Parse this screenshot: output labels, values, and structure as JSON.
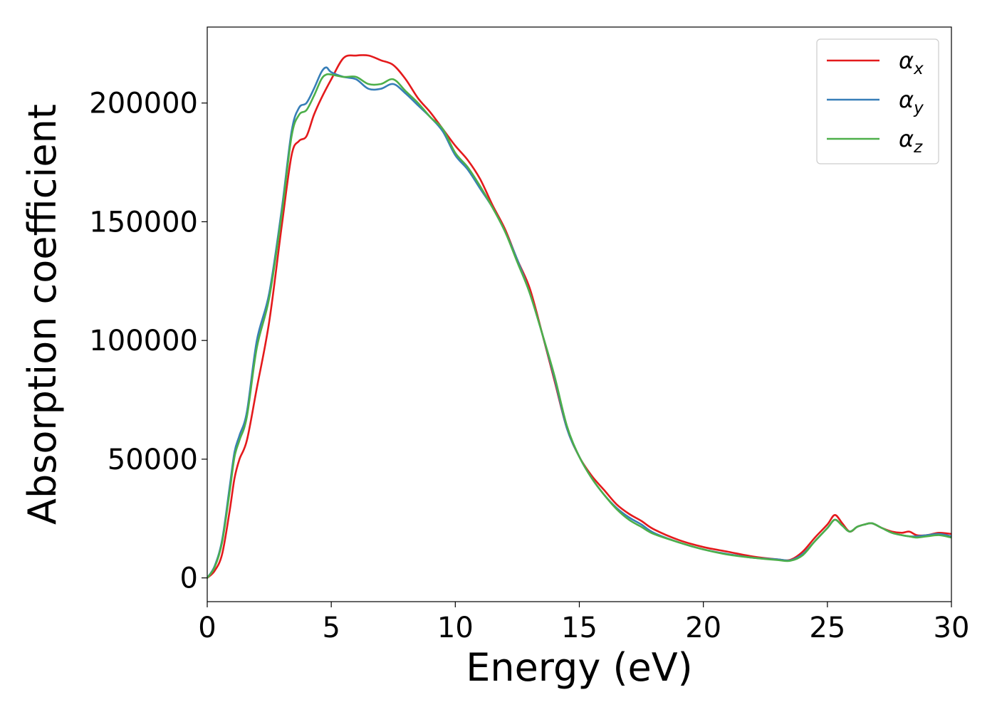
{
  "chart_data": {
    "type": "line",
    "xlabel": "Energy (eV)",
    "ylabel": "Absorption coefficient",
    "xlim": [
      0,
      30
    ],
    "ylim": [
      -10000,
      232000
    ],
    "xticks": [
      0,
      5,
      10,
      15,
      20,
      25,
      30
    ],
    "xtick_labels": [
      "0",
      "5",
      "10",
      "15",
      "20",
      "25",
      "30"
    ],
    "yticks": [
      0,
      50000,
      100000,
      150000,
      200000
    ],
    "ytick_labels": [
      "0",
      "50000",
      "100000",
      "150000",
      "200000"
    ],
    "grid": false,
    "legend_position": "top-right",
    "series": [
      {
        "name": "α",
        "subscript": "x",
        "color": "#e41a1c",
        "x": [
          0,
          0.3,
          0.6,
          0.9,
          1.1,
          1.3,
          1.6,
          2.0,
          2.5,
          3.0,
          3.4,
          3.7,
          4.0,
          4.3,
          4.6,
          5.0,
          5.5,
          6.0,
          6.5,
          7.0,
          7.5,
          8.0,
          8.5,
          9.0,
          9.5,
          10.0,
          10.5,
          11.0,
          11.5,
          12.0,
          12.5,
          13.0,
          13.5,
          14.0,
          14.5,
          15.0,
          15.5,
          16.0,
          16.5,
          17.0,
          17.5,
          18.0,
          19.0,
          20.0,
          21.0,
          22.0,
          23.0,
          23.5,
          24.0,
          24.5,
          25.0,
          25.3,
          25.6,
          25.9,
          26.2,
          26.5,
          26.8,
          27.2,
          27.6,
          28.0,
          28.3,
          28.6,
          29.0,
          29.5,
          30.0
        ],
        "y": [
          0,
          3000,
          10000,
          28000,
          42000,
          50000,
          58000,
          80000,
          108000,
          148000,
          178000,
          184000,
          186000,
          195000,
          202000,
          210000,
          219000,
          220000,
          220000,
          218000,
          216000,
          210000,
          202000,
          196000,
          189000,
          182000,
          176000,
          168000,
          157000,
          147000,
          134000,
          122000,
          103000,
          83000,
          63000,
          51000,
          43000,
          37000,
          31000,
          27000,
          24000,
          20500,
          16000,
          13000,
          11000,
          9000,
          7800,
          7600,
          11000,
          17000,
          22500,
          26500,
          23000,
          19500,
          21500,
          22500,
          23000,
          21000,
          19500,
          19000,
          19500,
          18000,
          18000,
          19000,
          18500
        ]
      },
      {
        "name": "α",
        "subscript": "y",
        "color": "#377eb8",
        "x": [
          0,
          0.3,
          0.6,
          0.9,
          1.1,
          1.3,
          1.6,
          2.0,
          2.5,
          3.0,
          3.4,
          3.7,
          4.0,
          4.3,
          4.6,
          4.8,
          5.0,
          5.5,
          6.0,
          6.5,
          7.0,
          7.5,
          8.0,
          8.5,
          9.0,
          9.5,
          10.0,
          10.5,
          11.0,
          11.5,
          12.0,
          12.5,
          13.0,
          13.5,
          14.0,
          14.5,
          15.0,
          15.5,
          16.0,
          16.5,
          17.0,
          17.5,
          18.0,
          19.0,
          20.0,
          21.0,
          22.0,
          23.0,
          23.5,
          24.0,
          24.5,
          25.0,
          25.3,
          25.6,
          25.9,
          26.2,
          26.5,
          26.8,
          27.2,
          27.6,
          28.0,
          28.3,
          28.6,
          29.0,
          29.5,
          30.0
        ],
        "y": [
          0,
          5000,
          16000,
          38000,
          53000,
          60000,
          70000,
          100000,
          120000,
          155000,
          188000,
          198000,
          200000,
          206000,
          213000,
          215000,
          213000,
          211000,
          210000,
          206000,
          206000,
          208000,
          204000,
          199000,
          194000,
          188000,
          178000,
          172000,
          164000,
          156000,
          146000,
          134000,
          120000,
          103000,
          84000,
          63000,
          51000,
          42000,
          35000,
          29500,
          25500,
          22500,
          19000,
          15000,
          12000,
          10000,
          8500,
          7800,
          7400,
          10000,
          15500,
          21000,
          24500,
          22000,
          19500,
          21500,
          22500,
          23000,
          21000,
          19000,
          18000,
          17500,
          17500,
          18000,
          18500,
          17500
        ]
      },
      {
        "name": "α",
        "subscript": "z",
        "color": "#4daf4a",
        "x": [
          0,
          0.3,
          0.6,
          0.9,
          1.1,
          1.3,
          1.6,
          2.0,
          2.5,
          3.0,
          3.4,
          3.7,
          4.0,
          4.3,
          4.6,
          4.8,
          5.0,
          5.5,
          6.0,
          6.5,
          7.0,
          7.5,
          8.0,
          8.5,
          9.0,
          9.5,
          10.0,
          10.5,
          11.0,
          11.5,
          12.0,
          12.5,
          13.0,
          13.5,
          14.0,
          14.5,
          15.0,
          15.5,
          16.0,
          16.5,
          17.0,
          17.5,
          18.0,
          19.0,
          20.0,
          21.0,
          22.0,
          23.0,
          23.5,
          24.0,
          24.5,
          25.0,
          25.3,
          25.6,
          25.9,
          26.2,
          26.5,
          26.8,
          27.2,
          27.6,
          28.0,
          28.3,
          28.6,
          29.0,
          29.5,
          30.0
        ],
        "y": [
          0,
          4500,
          15000,
          36000,
          51000,
          58000,
          68000,
          97000,
          118000,
          153000,
          186000,
          195000,
          197000,
          203000,
          210000,
          212000,
          212000,
          211000,
          211000,
          208000,
          208000,
          210000,
          205000,
          200000,
          194000,
          189000,
          179000,
          173000,
          165000,
          156000,
          146000,
          133000,
          120000,
          103000,
          85000,
          64000,
          51000,
          42000,
          35000,
          29000,
          24500,
          21500,
          18500,
          15000,
          12000,
          9800,
          8500,
          7500,
          7200,
          9500,
          15500,
          21000,
          24500,
          22000,
          19500,
          21500,
          22500,
          23000,
          21000,
          19000,
          18000,
          17500,
          17000,
          17500,
          18000,
          17000
        ]
      }
    ]
  }
}
